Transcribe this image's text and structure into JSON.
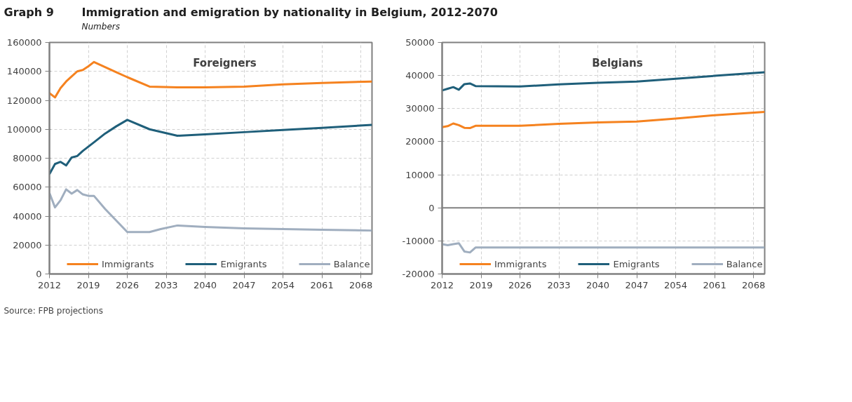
{
  "chart_data": [
    {
      "type": "line",
      "title": "Foreigners",
      "annotations": [
        "Graph 9",
        "Immigration and emigration by nationality in Belgium, 2012-2070",
        "Numbers",
        "Source: FPB projections"
      ],
      "xlim": [
        2012,
        2070
      ],
      "xticks": [
        2012,
        2019,
        2026,
        2033,
        2040,
        2047,
        2054,
        2061,
        2068
      ],
      "ylim": [
        0,
        160000
      ],
      "yticks": [
        0,
        20000,
        40000,
        60000,
        80000,
        100000,
        120000,
        140000,
        160000
      ],
      "grid": true,
      "legend": "bottom",
      "line_style": "solid",
      "series": [
        {
          "name": "Immigrants",
          "color": "#f5821f",
          "x": [
            2012,
            2013,
            2014,
            2015,
            2016,
            2017,
            2018,
            2019,
            2020,
            2022,
            2024,
            2026,
            2030,
            2035,
            2040,
            2047,
            2054,
            2061,
            2070
          ],
          "values": [
            125000,
            122000,
            128500,
            133000,
            136500,
            140000,
            141000,
            143500,
            146500,
            143000,
            139500,
            136000,
            129500,
            129000,
            129000,
            129500,
            131000,
            132000,
            133000
          ]
        },
        {
          "name": "Emigrants",
          "color": "#1f5f7a",
          "x": [
            2012,
            2013,
            2014,
            2015,
            2016,
            2017,
            2018,
            2020,
            2022,
            2024,
            2026,
            2030,
            2035,
            2040,
            2047,
            2054,
            2061,
            2070
          ],
          "values": [
            69000,
            76000,
            77500,
            75000,
            80500,
            81500,
            85000,
            91000,
            97000,
            102000,
            106500,
            100000,
            95500,
            96500,
            98000,
            99500,
            101000,
            103000
          ]
        },
        {
          "name": "Balance",
          "color": "#a0aebf",
          "x": [
            2012,
            2013,
            2014,
            2015,
            2016,
            2017,
            2018,
            2019,
            2020,
            2022,
            2024,
            2026,
            2030,
            2032,
            2035,
            2040,
            2047,
            2054,
            2061,
            2070
          ],
          "values": [
            56000,
            46000,
            51000,
            58500,
            55500,
            58000,
            55000,
            54000,
            54000,
            45000,
            37000,
            29000,
            29000,
            31000,
            33500,
            32500,
            31500,
            31000,
            30500,
            30000
          ]
        }
      ]
    },
    {
      "type": "line",
      "title": "Belgians",
      "xlim": [
        2012,
        2070
      ],
      "xticks": [
        2012,
        2019,
        2026,
        2033,
        2040,
        2047,
        2054,
        2061,
        2068
      ],
      "ylim": [
        -20000,
        50000
      ],
      "yticks": [
        -20000,
        -10000,
        0,
        10000,
        20000,
        30000,
        40000,
        50000
      ],
      "grid": true,
      "legend": "bottom",
      "line_style": "solid",
      "ref_lines": [
        {
          "axis": "y",
          "value": 0,
          "color": "#808080"
        }
      ],
      "series": [
        {
          "name": "Immigrants",
          "color": "#f5821f",
          "x": [
            2012,
            2013,
            2014,
            2015,
            2016,
            2017,
            2018,
            2026,
            2033,
            2040,
            2047,
            2054,
            2061,
            2070
          ],
          "values": [
            24400,
            24700,
            25500,
            25000,
            24200,
            24100,
            24800,
            24800,
            25400,
            25800,
            26100,
            27000,
            28000,
            29000
          ]
        },
        {
          "name": "Emigrants",
          "color": "#1f5f7a",
          "x": [
            2012,
            2013,
            2014,
            2015,
            2016,
            2017,
            2018,
            2026,
            2033,
            2040,
            2047,
            2054,
            2061,
            2070
          ],
          "values": [
            35500,
            36000,
            36500,
            35700,
            37400,
            37600,
            36800,
            36700,
            37300,
            37800,
            38200,
            39000,
            39900,
            41000
          ]
        },
        {
          "name": "Balance",
          "color": "#a0aebf",
          "x": [
            2012,
            2013,
            2014,
            2015,
            2016,
            2017,
            2018,
            2070
          ],
          "values": [
            -11000,
            -11300,
            -11000,
            -10700,
            -13200,
            -13500,
            -12000,
            -12000
          ]
        }
      ]
    }
  ]
}
